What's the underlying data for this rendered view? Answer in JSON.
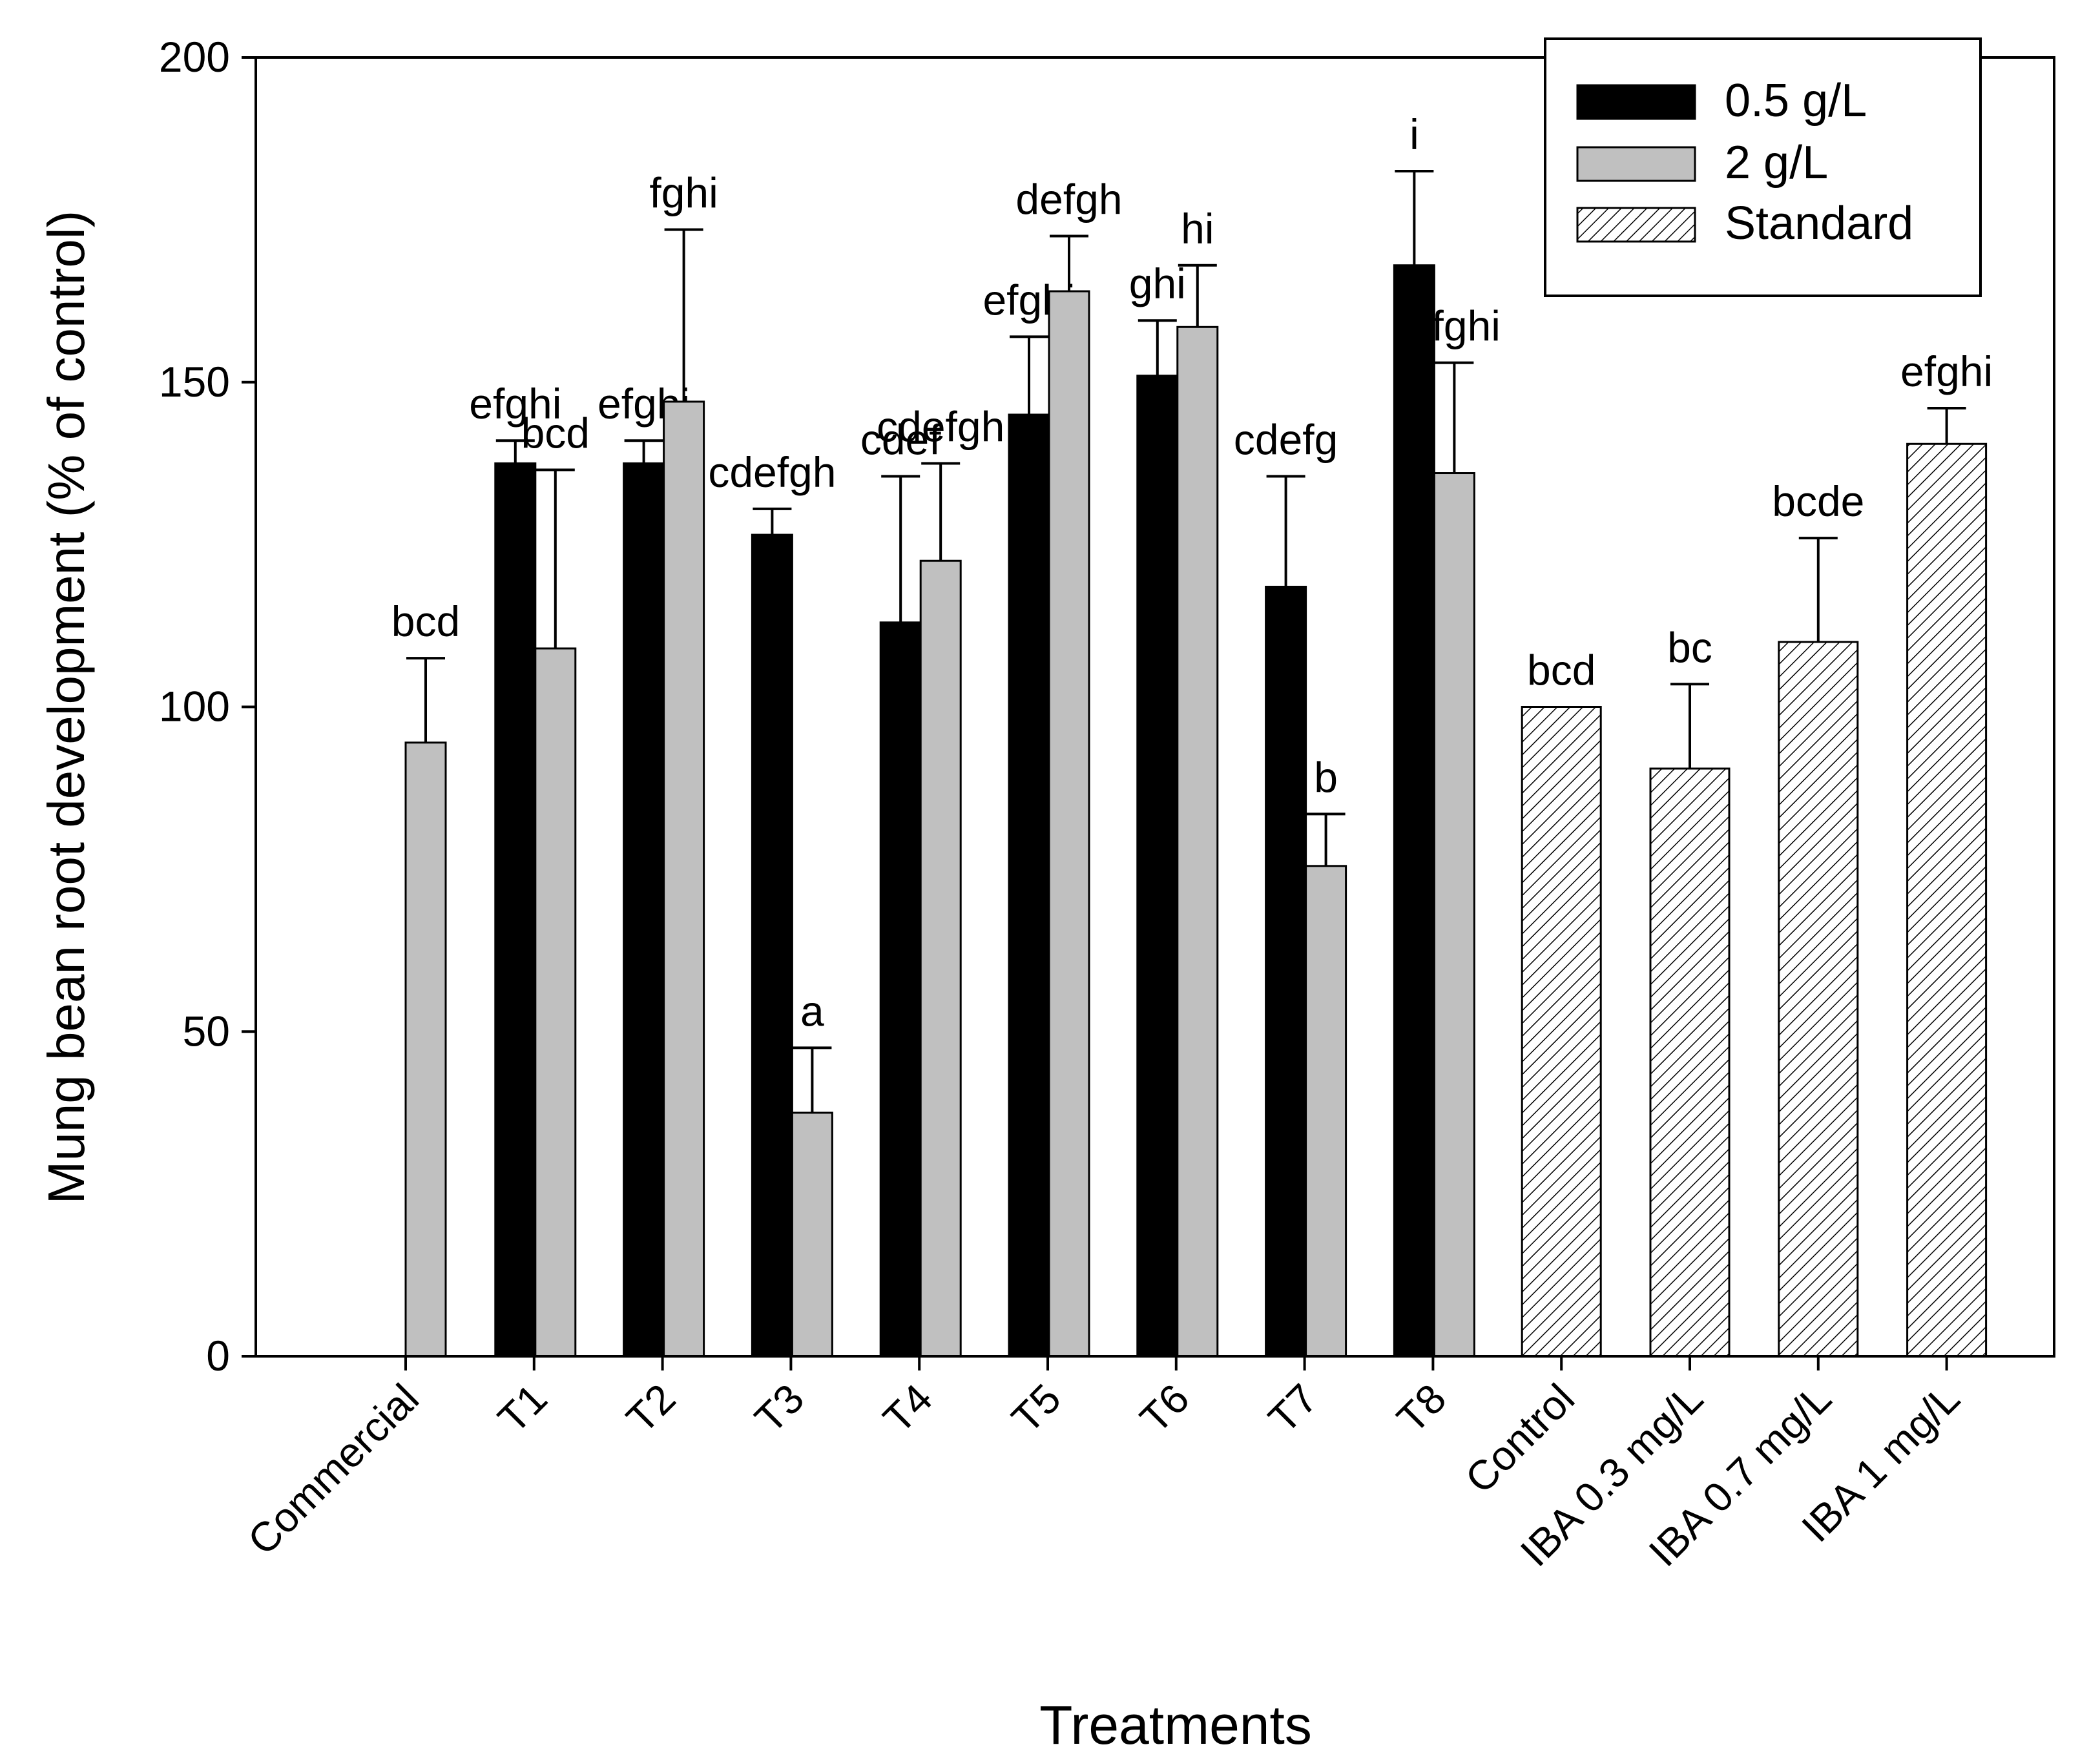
{
  "chart_data": {
    "type": "bar",
    "title": "",
    "xlabel": "Treatments",
    "ylabel": "Mung bean root development (% of control)",
    "ylim": [
      0,
      200
    ],
    "yticks": [
      "0",
      "50",
      "100",
      "150",
      "200"
    ],
    "legend_position": "top-right",
    "series": [
      {
        "name": "0.5 g/L",
        "style": "solid",
        "color": "#000000"
      },
      {
        "name": "2 g/L",
        "style": "solid",
        "color": "#c0c0c0"
      },
      {
        "name": "Standard",
        "style": "hatched",
        "color": "#ffffff"
      }
    ],
    "categories": [
      {
        "label": "Commercial",
        "bars": [
          {
            "series": 1,
            "value": 94.5,
            "err": 13,
            "letters": "bcd"
          }
        ]
      },
      {
        "label": "T1",
        "bars": [
          {
            "series": 0,
            "value": 137.5,
            "err": 3.5,
            "letters": "efghi"
          },
          {
            "series": 1,
            "value": 109,
            "err": 27.5,
            "letters": "bcd"
          }
        ]
      },
      {
        "label": "T2",
        "bars": [
          {
            "series": 0,
            "value": 137.5,
            "err": 3.5,
            "letters": "efghi"
          },
          {
            "series": 1,
            "value": 147,
            "err": 26.5,
            "letters": "fghi"
          }
        ]
      },
      {
        "label": "T3",
        "bars": [
          {
            "series": 0,
            "value": 126.5,
            "err": 4,
            "letters": "cdefgh"
          },
          {
            "series": 1,
            "value": 37.5,
            "err": 10,
            "letters": "a"
          }
        ]
      },
      {
        "label": "T4",
        "bars": [
          {
            "series": 0,
            "value": 113,
            "err": 22.5,
            "letters": "cdef"
          },
          {
            "series": 1,
            "value": 122.5,
            "err": 15,
            "letters": "cdefgh"
          }
        ]
      },
      {
        "label": "T5",
        "bars": [
          {
            "series": 0,
            "value": 145,
            "err": 12,
            "letters": "efghi"
          },
          {
            "series": 1,
            "value": 164,
            "err": 8.5,
            "letters": "defgh"
          }
        ]
      },
      {
        "label": "T6",
        "bars": [
          {
            "series": 0,
            "value": 151,
            "err": 8.5,
            "letters": "ghi"
          },
          {
            "series": 1,
            "value": 158.5,
            "err": 9.5,
            "letters": "hi"
          }
        ]
      },
      {
        "label": "T7",
        "bars": [
          {
            "series": 0,
            "value": 118.5,
            "err": 17,
            "letters": "cdefg"
          },
          {
            "series": 1,
            "value": 75.5,
            "err": 8,
            "letters": "b"
          }
        ]
      },
      {
        "label": "T8",
        "bars": [
          {
            "series": 0,
            "value": 168,
            "err": 14.5,
            "letters": "i"
          },
          {
            "series": 1,
            "value": 136,
            "err": 17,
            "letters": "efghi"
          }
        ]
      },
      {
        "label": "Control",
        "bars": [
          {
            "series": 2,
            "value": 100,
            "err": 0,
            "letters": "bcd"
          }
        ]
      },
      {
        "label": "IBA 0.3 mg/L",
        "bars": [
          {
            "series": 2,
            "value": 90.5,
            "err": 13,
            "letters": "bc"
          }
        ]
      },
      {
        "label": "IBA 0.7 mg/L",
        "bars": [
          {
            "series": 2,
            "value": 110,
            "err": 16,
            "letters": "bcde"
          }
        ]
      },
      {
        "label": "IBA 1 mg/L",
        "bars": [
          {
            "series": 2,
            "value": 140.5,
            "err": 5.5,
            "letters": "efghi"
          }
        ]
      }
    ]
  }
}
